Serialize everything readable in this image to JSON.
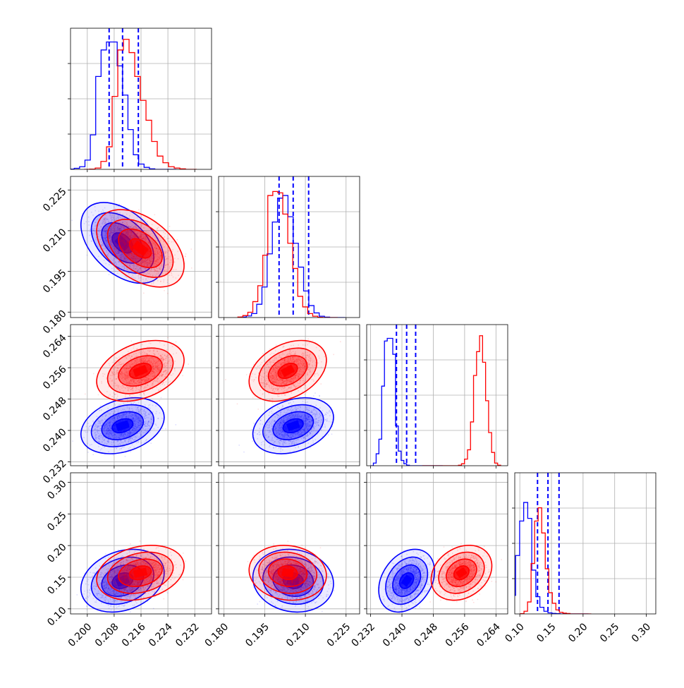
{
  "chart_data": {
    "type": "scatter",
    "title": "",
    "variables": [
      {
        "id": "p0",
        "ticks": [
          0.2,
          0.208,
          0.216,
          0.224,
          0.232
        ],
        "tick_labels": [
          "0.200",
          "0.208",
          "0.216",
          "0.224",
          "0.232"
        ],
        "range": [
          0.195,
          0.237
        ]
      },
      {
        "id": "p1",
        "ticks": [
          0.18,
          0.195,
          0.21,
          0.225
        ],
        "tick_labels": [
          "0.180",
          "0.195",
          "0.210",
          "0.225"
        ],
        "range": [
          0.178,
          0.23
        ]
      },
      {
        "id": "p2",
        "ticks": [
          0.232,
          0.24,
          0.248,
          0.256,
          0.264
        ],
        "tick_labels": [
          "0.232",
          "0.240",
          "0.248",
          "0.256",
          "0.264"
        ],
        "range": [
          0.231,
          0.267
        ]
      },
      {
        "id": "p3",
        "ticks": [
          0.1,
          0.15,
          0.2,
          0.25,
          0.3
        ],
        "tick_labels": [
          "0.10",
          "0.15",
          "0.20",
          "0.25",
          "0.30"
        ],
        "range": [
          0.092,
          0.315
        ]
      }
    ],
    "series": [
      {
        "color": "#0000ff",
        "mean": [
          0.2105,
          0.2055,
          0.2412,
          0.1445
        ],
        "sd": [
          0.004,
          0.0048,
          0.0023,
          0.016
        ],
        "corr": {
          "0-1": -0.45,
          "0-2": 0.3,
          "0-3": 0.25,
          "1-2": 0.3,
          "1-3": -0.1,
          "2-3": 0.3
        },
        "quantiles": [
          [
            0.2065,
            0.2105,
            0.2152
          ],
          [
            0.2003,
            0.2055,
            0.2112
          ],
          [
            0.2386,
            0.2412,
            0.2435
          ],
          [
            0.128,
            0.1445,
            0.162
          ]
        ],
        "hist": [
          [
            0.002,
            0.008,
            0.02,
            0.07,
            0.26,
            0.7,
            0.9,
            0.96,
            0.96,
            0.78,
            0.56,
            0.3,
            0.11,
            0.04,
            0.015,
            0.004,
            0,
            0,
            0,
            0
          ],
          [
            0.004,
            0.012,
            0.03,
            0.1,
            0.23,
            0.48,
            0.72,
            0.9,
            0.92,
            0.76,
            0.56,
            0.38,
            0.2,
            0.09,
            0.035,
            0.01,
            0.003,
            0,
            0,
            0
          ],
          [
            0,
            0.02,
            0.09,
            0.2,
            0.6,
            0.94,
            0.96,
            0.96,
            0.84,
            0.3,
            0.11,
            0.04,
            0.015,
            0.004,
            0,
            0,
            0,
            0,
            0,
            0,
            0,
            0,
            0,
            0,
            0,
            0
          ],
          [
            0.05,
            0.14,
            0.44,
            0.7,
            0.84,
            0.72,
            0.33,
            0.13,
            0.05,
            0.02,
            0.008,
            0.004,
            0.002,
            0,
            0,
            0,
            0,
            0,
            0,
            0
          ]
        ]
      },
      {
        "color": "#ff0000",
        "mean": [
          0.2158,
          0.2035,
          0.2552,
          0.157
        ],
        "sd": [
          0.0042,
          0.0046,
          0.0025,
          0.014
        ],
        "corr": {
          "0-1": -0.45,
          "0-2": 0.35,
          "0-3": 0.25,
          "1-2": 0.35,
          "1-3": -0.1,
          "2-3": 0.25
        },
        "hist": [
          [
            0,
            0.002,
            0.01,
            0.06,
            0.17,
            0.55,
            0.9,
            0.98,
            0.88,
            0.7,
            0.52,
            0.37,
            0.21,
            0.1,
            0.05,
            0.02,
            0.01,
            0.004,
            0,
            0
          ],
          [
            0.004,
            0.015,
            0.04,
            0.12,
            0.24,
            0.47,
            0.92,
            0.95,
            0.94,
            0.78,
            0.56,
            0.37,
            0.16,
            0.08,
            0.03,
            0.01,
            0.002,
            0,
            0,
            0
          ],
          [
            0,
            0,
            0,
            0,
            0,
            0,
            0,
            0,
            0,
            0,
            0,
            0,
            0.004,
            0.015,
            0.05,
            0.12,
            0.33,
            0.68,
            0.86,
            0.98,
            0.78,
            0.49,
            0.25,
            0.1,
            0.02,
            0.004
          ],
          [
            0.002,
            0.02,
            0.09,
            0.38,
            0.7,
            0.8,
            0.61,
            0.34,
            0.16,
            0.08,
            0.03,
            0.012,
            0.006,
            0.003,
            0,
            0,
            0,
            0,
            0,
            0
          ]
        ]
      }
    ],
    "contour_levels_sigma": [
      0.5,
      1.0,
      1.5,
      2.0
    ],
    "grid": true,
    "legend": "none"
  }
}
